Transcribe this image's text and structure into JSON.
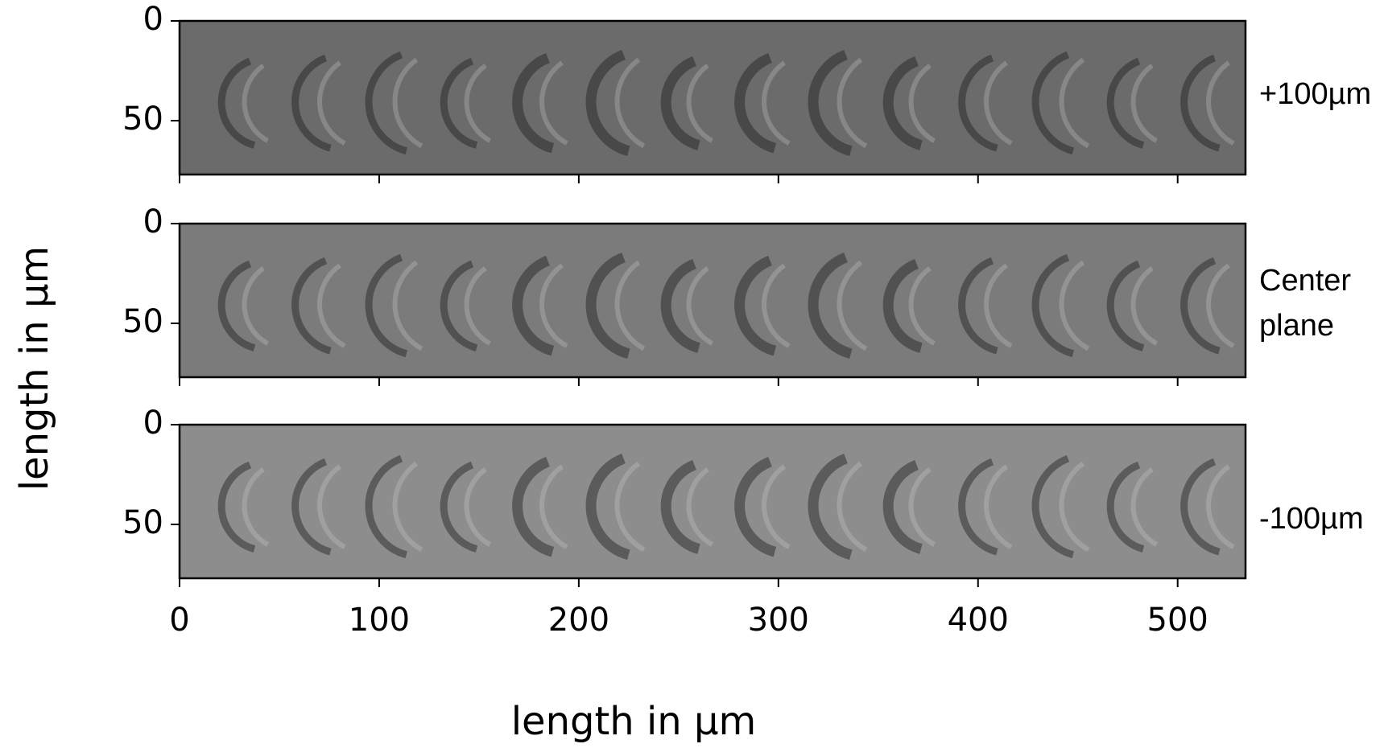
{
  "chart_data": [
    {
      "type": "image",
      "label": "+100µm",
      "color": "#6b6b6b",
      "xlim": [
        0,
        534
      ],
      "ylim": [
        77,
        0
      ],
      "xticks": [
        0,
        100,
        200,
        300,
        400,
        500
      ],
      "yticks": [
        0,
        50
      ],
      "show_xtick_labels": false
    },
    {
      "type": "image",
      "label": "Center plane",
      "color": "#7b7b7b",
      "xlim": [
        0,
        534
      ],
      "ylim": [
        77,
        0
      ],
      "xticks": [
        0,
        100,
        200,
        300,
        400,
        500
      ],
      "yticks": [
        0,
        50
      ],
      "show_xtick_labels": false
    },
    {
      "type": "image",
      "label": "-100µm",
      "color": "#8d8d8d",
      "xlim": [
        0,
        534
      ],
      "ylim": [
        77,
        0
      ],
      "xticks": [
        0,
        100,
        200,
        300,
        400,
        500
      ],
      "yticks": [
        0,
        50
      ],
      "show_xtick_labels": true
    }
  ],
  "xlabel": "length in μm",
  "ylabel": "length in μm"
}
